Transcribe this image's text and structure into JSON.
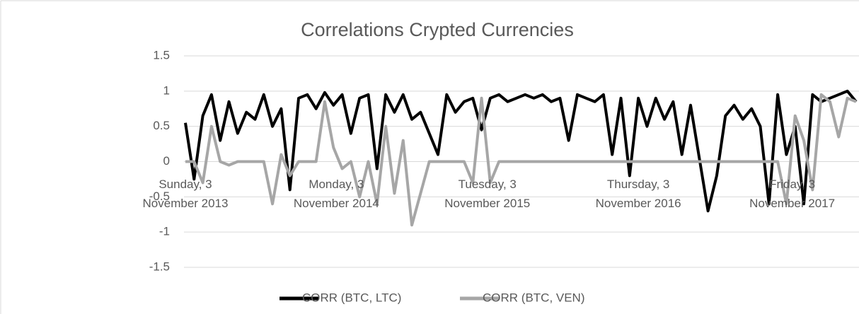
{
  "chart_data": {
    "type": "line",
    "title": "Correlations Crypted Currencies",
    "x": [
      0,
      3,
      6,
      9,
      12,
      15,
      18,
      21,
      24,
      27,
      30,
      33,
      36,
      39,
      42,
      45,
      48,
      51,
      54,
      57,
      60,
      63,
      66,
      69,
      72,
      75,
      78,
      81,
      84,
      87,
      90,
      93,
      96,
      99,
      102,
      105,
      108,
      111,
      114,
      117,
      120,
      123,
      126,
      129,
      132,
      135,
      138,
      141,
      144,
      147,
      150,
      153,
      156,
      159,
      162,
      165,
      168,
      171,
      174,
      177,
      180,
      183,
      186,
      189,
      192,
      195,
      198,
      201,
      204,
      207,
      210,
      213,
      216,
      219,
      222,
      225,
      228,
      231
    ],
    "series": [
      {
        "name": "CORR (BTC, LTC)",
        "color": "#000000",
        "values": [
          0.55,
          -0.25,
          0.65,
          0.95,
          0.3,
          0.85,
          0.4,
          0.7,
          0.6,
          0.95,
          0.5,
          0.75,
          -0.4,
          0.9,
          0.95,
          0.75,
          0.98,
          0.8,
          0.95,
          0.4,
          0.9,
          0.95,
          -0.1,
          0.95,
          0.7,
          0.95,
          0.6,
          0.7,
          0.4,
          0.1,
          0.95,
          0.7,
          0.85,
          0.9,
          0.45,
          0.9,
          0.95,
          0.85,
          0.9,
          0.95,
          0.9,
          0.95,
          0.85,
          0.9,
          0.3,
          0.95,
          0.9,
          0.85,
          0.95,
          0.1,
          0.9,
          -0.2,
          0.9,
          0.5,
          0.9,
          0.6,
          0.85,
          0.1,
          0.8,
          0.05,
          -0.7,
          -0.2,
          0.65,
          0.8,
          0.6,
          0.75,
          0.5,
          -0.6,
          0.95,
          0.1,
          0.5,
          -0.6,
          0.95,
          0.85,
          0.9,
          0.95,
          1.0,
          0.85
        ]
      },
      {
        "name": "CORR (BTC, VEN)",
        "color": "#a6a6a6",
        "values": [
          0,
          0,
          -0.3,
          0.5,
          0,
          -0.05,
          0,
          0,
          0,
          0,
          -0.6,
          0.1,
          -0.2,
          0,
          0,
          0,
          0.85,
          0.2,
          -0.1,
          0,
          -0.5,
          0,
          -0.6,
          0.5,
          -0.45,
          0.3,
          -0.9,
          -0.45,
          0,
          0,
          0,
          0,
          0,
          -0.3,
          0.9,
          -0.3,
          0,
          0,
          0,
          0,
          0,
          0,
          0,
          0,
          0,
          0,
          0,
          0,
          0,
          0,
          0,
          0,
          0,
          0,
          0,
          0,
          0,
          0,
          0,
          0,
          0,
          0,
          0,
          0,
          0,
          0,
          0,
          0,
          0,
          -0.6,
          0.65,
          0.3,
          -0.4,
          0.95,
          0.85,
          0.35,
          0.9,
          0.85
        ]
      }
    ],
    "xlim": [
      0,
      232
    ],
    "xticks": [
      {
        "value": 0,
        "label": "Sunday, 3 November 2013"
      },
      {
        "value": 52,
        "label": "Monday, 3 November 2014"
      },
      {
        "value": 104,
        "label": "Tuesday, 3 November 2015"
      },
      {
        "value": 156,
        "label": "Thursday, 3 November 2016"
      },
      {
        "value": 209,
        "label": "Friday, 3 November 2017"
      }
    ],
    "ylim": [
      -1.5,
      1.5
    ],
    "yticks": [
      1.5,
      1,
      0.5,
      0,
      -0.5,
      -1,
      -1.5
    ],
    "grid": true,
    "legend": "bottom"
  }
}
